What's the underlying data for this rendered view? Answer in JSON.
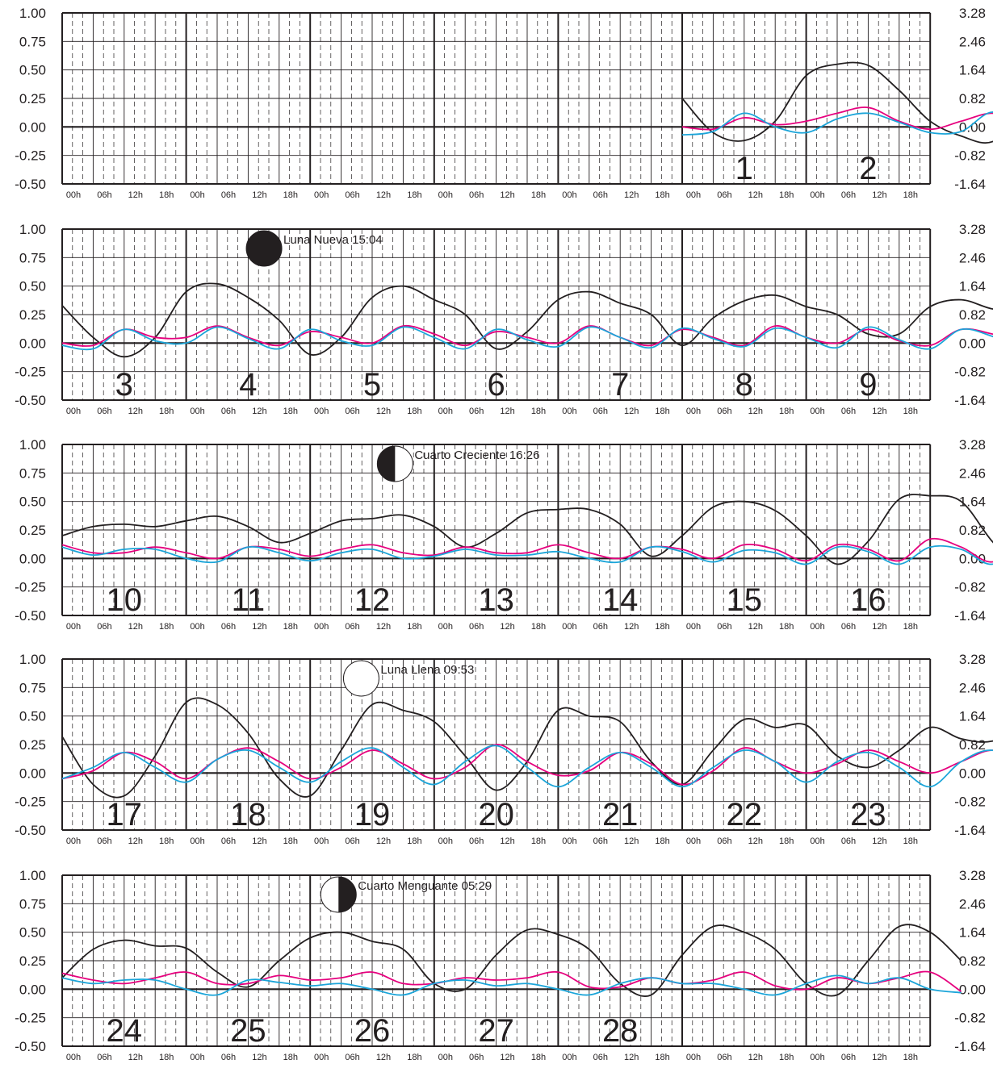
{
  "colors": {
    "background": "#ffffff",
    "grid": "#231f20",
    "black_series": "#231f20",
    "magenta_series": "#e6007e",
    "cyan_series": "#1ba5d9",
    "moon_dark": "#231f20"
  },
  "left_ticks": [
    "1.00",
    "0.75",
    "0.50",
    "0.25",
    "0.00",
    "-0.25",
    "-0.50"
  ],
  "right_ticks": [
    "3.28",
    "2.46",
    "1.64",
    "0.82",
    "0.00",
    "-0.82",
    "-1.64"
  ],
  "hour_labels": [
    "00h",
    "06h",
    "12h",
    "18h"
  ],
  "chart_data": [
    {
      "type": "line",
      "day_slots": [
        "",
        "",
        "",
        "",
        "",
        "1",
        "2"
      ],
      "ylim": [
        -0.5,
        1.0
      ],
      "ylim_right": [
        -1.64,
        3.28
      ],
      "grid": true,
      "moon_phase": null,
      "series": [
        {
          "color": "black",
          "start": 5,
          "values": [
            0.25,
            -0.05,
            -0.12,
            0.05,
            0.45,
            0.55,
            0.54,
            0.32,
            0.05,
            -0.08,
            -0.13,
            0.12,
            0.45,
            0.55,
            0.54,
            0.35
          ]
        },
        {
          "color": "magenta",
          "start": 5,
          "values": [
            0.0,
            -0.02,
            0.08,
            0.02,
            0.05,
            0.12,
            0.17,
            0.05,
            -0.02,
            0.05,
            0.12,
            0.05,
            0.0,
            0.05,
            0.17,
            0.03
          ]
        },
        {
          "color": "cyan",
          "start": 5,
          "values": [
            -0.07,
            -0.04,
            0.12,
            0.0,
            -0.05,
            0.07,
            0.12,
            0.04,
            -0.05,
            -0.04,
            0.13,
            0.0,
            -0.05,
            0.06,
            0.12,
            0.02
          ]
        }
      ]
    },
    {
      "type": "line",
      "day_slots": [
        "3",
        "4",
        "5",
        "6",
        "7",
        "8",
        "9"
      ],
      "ylim": [
        -0.5,
        1.0
      ],
      "ylim_right": [
        -1.64,
        3.28
      ],
      "grid": true,
      "moon_phase": {
        "kind": "new",
        "label": "Luna Nueva 15:04",
        "day_index": 1,
        "hour": 15.07
      },
      "series": [
        {
          "color": "black",
          "values": [
            0.33,
            0.05,
            -0.12,
            0.05,
            0.45,
            0.52,
            0.4,
            0.2,
            -0.1,
            0.05,
            0.4,
            0.5,
            0.38,
            0.25,
            -0.05,
            0.1,
            0.38,
            0.45,
            0.35,
            0.25,
            -0.02,
            0.22,
            0.37,
            0.42,
            0.32,
            0.25,
            0.08,
            0.08,
            0.32,
            0.38,
            0.3,
            0.28,
            0.12,
            0.15,
            0.33,
            0.35,
            0.28,
            0.22,
            0.18,
            0.2,
            0.32,
            0.26
          ]
        },
        {
          "color": "magenta",
          "values": [
            0.0,
            -0.02,
            0.12,
            0.05,
            0.05,
            0.15,
            0.05,
            -0.02,
            0.1,
            0.05,
            0.0,
            0.15,
            0.08,
            -0.02,
            0.1,
            0.05,
            0.0,
            0.15,
            0.05,
            -0.02,
            0.12,
            0.05,
            -0.02,
            0.15,
            0.05,
            0.0,
            0.12,
            0.02,
            -0.02,
            0.12,
            0.08,
            0.0,
            0.1,
            0.08,
            -0.02,
            0.12,
            0.08,
            0.0,
            0.1,
            0.05,
            0.0,
            0.12
          ]
        },
        {
          "color": "cyan",
          "values": [
            -0.02,
            -0.05,
            0.12,
            0.02,
            0.0,
            0.14,
            0.04,
            -0.05,
            0.12,
            0.02,
            -0.02,
            0.14,
            0.05,
            -0.05,
            0.12,
            0.03,
            -0.03,
            0.14,
            0.05,
            -0.04,
            0.13,
            0.04,
            -0.03,
            0.13,
            0.05,
            -0.04,
            0.14,
            0.03,
            -0.05,
            0.12,
            0.06,
            -0.05,
            0.14,
            0.03,
            -0.06,
            0.12,
            0.06,
            -0.04,
            0.13,
            0.03,
            -0.05,
            0.1
          ]
        }
      ]
    },
    {
      "type": "line",
      "day_slots": [
        "10",
        "11",
        "12",
        "13",
        "14",
        "15",
        "16"
      ],
      "ylim": [
        -0.5,
        1.0
      ],
      "ylim_right": [
        -1.64,
        3.28
      ],
      "grid": true,
      "moon_phase": {
        "kind": "first-quarter",
        "label": "Cuarto Creciente 16:26",
        "day_index": 2,
        "hour": 16.43
      },
      "series": [
        {
          "color": "black",
          "values": [
            0.2,
            0.28,
            0.3,
            0.28,
            0.33,
            0.37,
            0.28,
            0.14,
            0.22,
            0.33,
            0.35,
            0.38,
            0.28,
            0.1,
            0.22,
            0.4,
            0.43,
            0.43,
            0.3,
            0.02,
            0.2,
            0.45,
            0.5,
            0.42,
            0.2,
            -0.05,
            0.15,
            0.52,
            0.55,
            0.5,
            0.15,
            -0.12,
            0.2,
            0.6,
            0.58,
            0.5,
            0.08,
            -0.15,
            0.22,
            0.62,
            0.6,
            0.32
          ]
        },
        {
          "color": "magenta",
          "values": [
            0.12,
            0.05,
            0.05,
            0.1,
            0.05,
            0.0,
            0.1,
            0.08,
            0.02,
            0.08,
            0.12,
            0.05,
            0.03,
            0.1,
            0.05,
            0.05,
            0.12,
            0.05,
            0.0,
            0.1,
            0.08,
            0.0,
            0.12,
            0.08,
            -0.02,
            0.12,
            0.08,
            -0.02,
            0.17,
            0.1,
            -0.03,
            0.15,
            0.1,
            -0.02,
            0.2,
            0.1,
            -0.03,
            0.15,
            0.08,
            -0.02,
            0.22,
            0.0
          ]
        },
        {
          "color": "cyan",
          "values": [
            0.1,
            0.03,
            0.08,
            0.08,
            0.0,
            -0.03,
            0.1,
            0.05,
            -0.02,
            0.05,
            0.08,
            0.0,
            0.02,
            0.08,
            0.03,
            0.03,
            0.06,
            0.0,
            -0.03,
            0.1,
            0.06,
            -0.03,
            0.07,
            0.05,
            -0.05,
            0.1,
            0.06,
            -0.05,
            0.1,
            0.08,
            -0.05,
            0.14,
            0.06,
            -0.05,
            0.14,
            0.06,
            -0.06,
            0.16,
            0.04,
            -0.04,
            0.17,
            -0.05
          ]
        }
      ]
    },
    {
      "type": "line",
      "day_slots": [
        "17",
        "18",
        "19",
        "20",
        "21",
        "22",
        "23"
      ],
      "ylim": [
        -0.5,
        1.0
      ],
      "ylim_right": [
        -1.64,
        3.28
      ],
      "grid": true,
      "moon_phase": {
        "kind": "full",
        "label": "Luna Llena 09:53",
        "day_index": 2,
        "hour": 9.88
      },
      "series": [
        {
          "color": "black",
          "values": [
            0.32,
            -0.1,
            -0.2,
            0.15,
            0.62,
            0.6,
            0.35,
            -0.05,
            -0.2,
            0.2,
            0.6,
            0.55,
            0.45,
            0.15,
            -0.15,
            0.1,
            0.55,
            0.5,
            0.45,
            0.1,
            -0.1,
            0.2,
            0.47,
            0.4,
            0.42,
            0.15,
            0.05,
            0.2,
            0.4,
            0.3,
            0.28,
            0.42,
            0.22,
            0.2,
            0.35,
            0.25,
            0.15,
            0.3,
            0.4,
            0.3,
            0.35,
            0.1
          ]
        },
        {
          "color": "magenta",
          "values": [
            -0.05,
            0.02,
            0.18,
            0.1,
            -0.05,
            0.12,
            0.22,
            0.1,
            -0.05,
            0.05,
            0.2,
            0.08,
            -0.05,
            0.05,
            0.25,
            0.1,
            -0.02,
            0.02,
            0.18,
            0.08,
            -0.1,
            0.02,
            0.22,
            0.1,
            0.0,
            0.08,
            0.2,
            0.1,
            0.0,
            0.1,
            0.2,
            0.1,
            0.0,
            0.15,
            0.15,
            0.05,
            0.0,
            0.15,
            0.12,
            0.05,
            0.0,
            0.15
          ]
        },
        {
          "color": "cyan",
          "values": [
            -0.05,
            0.05,
            0.18,
            0.05,
            -0.08,
            0.12,
            0.2,
            0.05,
            -0.08,
            0.1,
            0.22,
            0.05,
            -0.1,
            0.1,
            0.24,
            0.05,
            -0.12,
            0.05,
            0.18,
            0.05,
            -0.12,
            0.05,
            0.2,
            0.1,
            -0.08,
            0.1,
            0.18,
            0.05,
            -0.12,
            0.1,
            0.2,
            0.05,
            -0.1,
            0.1,
            0.2,
            -0.05,
            -0.1,
            0.12,
            0.15,
            -0.05,
            -0.1,
            0.1
          ]
        }
      ]
    },
    {
      "type": "line",
      "day_slots": [
        "24",
        "25",
        "26",
        "27",
        "28",
        "",
        ""
      ],
      "ylim": [
        -0.5,
        1.0
      ],
      "ylim_right": [
        -1.64,
        3.28
      ],
      "grid": true,
      "moon_phase": {
        "kind": "last-quarter",
        "label": "Cuarto Menguante 05:29",
        "day_index": 2,
        "hour": 5.48
      },
      "series": [
        {
          "color": "black",
          "end": 29,
          "values": [
            0.1,
            0.35,
            0.43,
            0.38,
            0.36,
            0.15,
            0.02,
            0.25,
            0.45,
            0.5,
            0.42,
            0.35,
            0.05,
            0.0,
            0.3,
            0.52,
            0.48,
            0.35,
            0.05,
            -0.05,
            0.3,
            0.55,
            0.5,
            0.35,
            0.05,
            -0.05,
            0.25,
            0.55,
            0.5,
            0.25
          ]
        },
        {
          "color": "magenta",
          "end": 29,
          "values": [
            0.14,
            0.08,
            0.05,
            0.1,
            0.15,
            0.05,
            0.05,
            0.12,
            0.08,
            0.1,
            0.15,
            0.05,
            0.05,
            0.1,
            0.08,
            0.1,
            0.15,
            0.02,
            0.02,
            0.1,
            0.05,
            0.08,
            0.15,
            0.03,
            0.0,
            0.1,
            0.05,
            0.1,
            0.15,
            -0.02
          ]
        },
        {
          "color": "cyan",
          "end": 29,
          "values": [
            0.1,
            0.05,
            0.08,
            0.08,
            0.0,
            -0.05,
            0.08,
            0.06,
            0.03,
            0.05,
            0.0,
            -0.05,
            0.05,
            0.08,
            0.03,
            0.05,
            0.0,
            -0.05,
            0.05,
            0.1,
            0.05,
            0.05,
            0.0,
            -0.05,
            0.05,
            0.12,
            0.05,
            0.1,
            0.0,
            -0.03
          ]
        }
      ]
    }
  ]
}
